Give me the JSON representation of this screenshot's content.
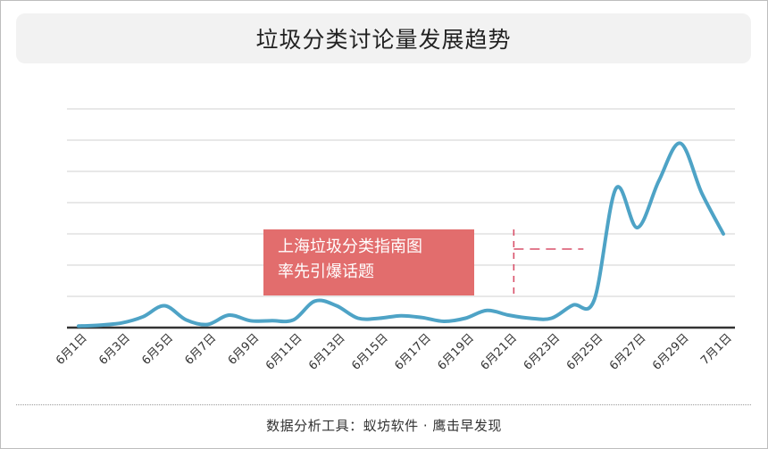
{
  "title": "垃圾分类讨论量发展趋势",
  "footer": "数据分析工具：蚁坊软件 · 鹰击早发现",
  "annotation": {
    "lines": [
      "上海垃圾分类指南图",
      "率先引爆话题"
    ],
    "marker_date": "6月21日",
    "box_color": "#e26d6d",
    "marker_color": "#d9516a"
  },
  "colors": {
    "line": "#4ea3c6",
    "grid": "#d9d9d9",
    "axis": "#333333",
    "panel": "#f2f2f2"
  },
  "chart_data": {
    "type": "line",
    "title": "垃圾分类讨论量发展趋势",
    "xlabel": "",
    "ylabel": "",
    "y_ticks_labeled": false,
    "grid": true,
    "x_tick_labels": [
      "6月1日",
      "6月3日",
      "6月5日",
      "6月7日",
      "6月9日",
      "6月11日",
      "6月13日",
      "6月15日",
      "6月17日",
      "6月19日",
      "6月21日",
      "6月23日",
      "6月25日",
      "6月27日",
      "6月29日",
      "7月1日"
    ],
    "x": [
      "6月1日",
      "6月2日",
      "6月3日",
      "6月4日",
      "6月5日",
      "6月6日",
      "6月7日",
      "6月8日",
      "6月9日",
      "6月10日",
      "6月11日",
      "6月12日",
      "6月13日",
      "6月14日",
      "6月15日",
      "6月16日",
      "6月17日",
      "6月18日",
      "6月19日",
      "6月20日",
      "6月21日",
      "6月22日",
      "6月23日",
      "6月24日",
      "6月25日",
      "6月26日",
      "6月27日",
      "6月28日",
      "6月29日",
      "6月30日",
      "7月1日"
    ],
    "ylim": [
      0,
      7
    ],
    "series": [
      {
        "values": [
          0.05,
          0.08,
          0.15,
          0.35,
          0.7,
          0.25,
          0.1,
          0.4,
          0.22,
          0.22,
          0.25,
          0.85,
          0.7,
          0.3,
          0.3,
          0.38,
          0.32,
          0.2,
          0.3,
          0.55,
          0.4,
          0.3,
          0.3,
          0.72,
          0.9,
          4.45,
          3.2,
          4.7,
          5.9,
          4.3,
          3.0
        ]
      }
    ]
  }
}
